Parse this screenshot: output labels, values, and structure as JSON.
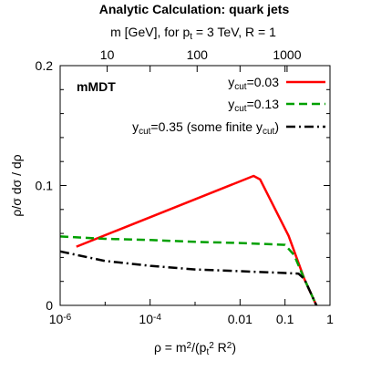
{
  "chart_data": {
    "type": "line",
    "title": "Analytic Calculation: quark jets",
    "top_axis": {
      "label_parts": [
        "m [GeV], for p",
        "t",
        " = 3 TeV, R = 1"
      ],
      "ticks": [
        {
          "label": "10",
          "rho": 1.1111e-05
        },
        {
          "label": "100",
          "rho": 0.0011111
        },
        {
          "label": "1000",
          "rho": 0.11111
        }
      ]
    },
    "xaxis": {
      "scale": "log",
      "range": [
        1e-06,
        1.0
      ],
      "label_parts": [
        "ρ = m",
        "2",
        "/(p",
        "t",
        "2",
        " R",
        "2",
        ")"
      ],
      "ticks": [
        {
          "label_base": "10",
          "label_exp": "-6",
          "value": 1e-06
        },
        {
          "label_base": "10",
          "label_exp": "-4",
          "value": 0.0001
        },
        {
          "label_base": "0.01",
          "label_exp": "",
          "value": 0.01
        },
        {
          "label_base": "0.1",
          "label_exp": "",
          "value": 0.1
        },
        {
          "label_base": "1",
          "label_exp": "",
          "value": 1.0
        }
      ]
    },
    "yaxis": {
      "range": [
        0,
        0.2
      ],
      "label": "ρ/σ dσ / dρ",
      "ticks": [
        {
          "label": "0",
          "value": 0
        },
        {
          "label": "0.1",
          "value": 0.1
        },
        {
          "label": "0.2",
          "value": 0.2
        }
      ]
    },
    "annotation": "mMDT",
    "legend_position": "top-right",
    "series": [
      {
        "name_parts": [
          "y",
          "cut",
          "=0.03"
        ],
        "color": "#ff0000",
        "dash": "solid",
        "points": [
          [
            2.3e-06,
            0.049
          ],
          [
            0.02,
            0.108
          ],
          [
            0.028,
            0.105
          ],
          [
            0.12,
            0.058
          ],
          [
            0.27,
            0.022
          ],
          [
            0.5,
            0.0
          ]
        ]
      },
      {
        "name_parts": [
          "y",
          "cut",
          "=0.13"
        ],
        "color": "#00a000",
        "dash": "dashed",
        "points": [
          [
            1e-06,
            0.0575
          ],
          [
            1e-05,
            0.0555
          ],
          [
            0.0001,
            0.0545
          ],
          [
            0.001,
            0.053
          ],
          [
            0.01,
            0.052
          ],
          [
            0.1,
            0.0505
          ],
          [
            0.16,
            0.042
          ],
          [
            0.27,
            0.022
          ],
          [
            0.5,
            0.0
          ]
        ]
      },
      {
        "name_parts": [
          "y",
          "cut",
          "=0.35 (some finite y",
          "cut",
          ")"
        ],
        "color": "#000000",
        "dash": "dashdot",
        "points": [
          [
            1e-06,
            0.045
          ],
          [
            1e-05,
            0.037
          ],
          [
            0.0001,
            0.033
          ],
          [
            0.001,
            0.03
          ],
          [
            0.01,
            0.0285
          ],
          [
            0.1,
            0.027
          ],
          [
            0.2,
            0.0265
          ],
          [
            0.27,
            0.022
          ],
          [
            0.5,
            0.0
          ]
        ]
      }
    ]
  }
}
